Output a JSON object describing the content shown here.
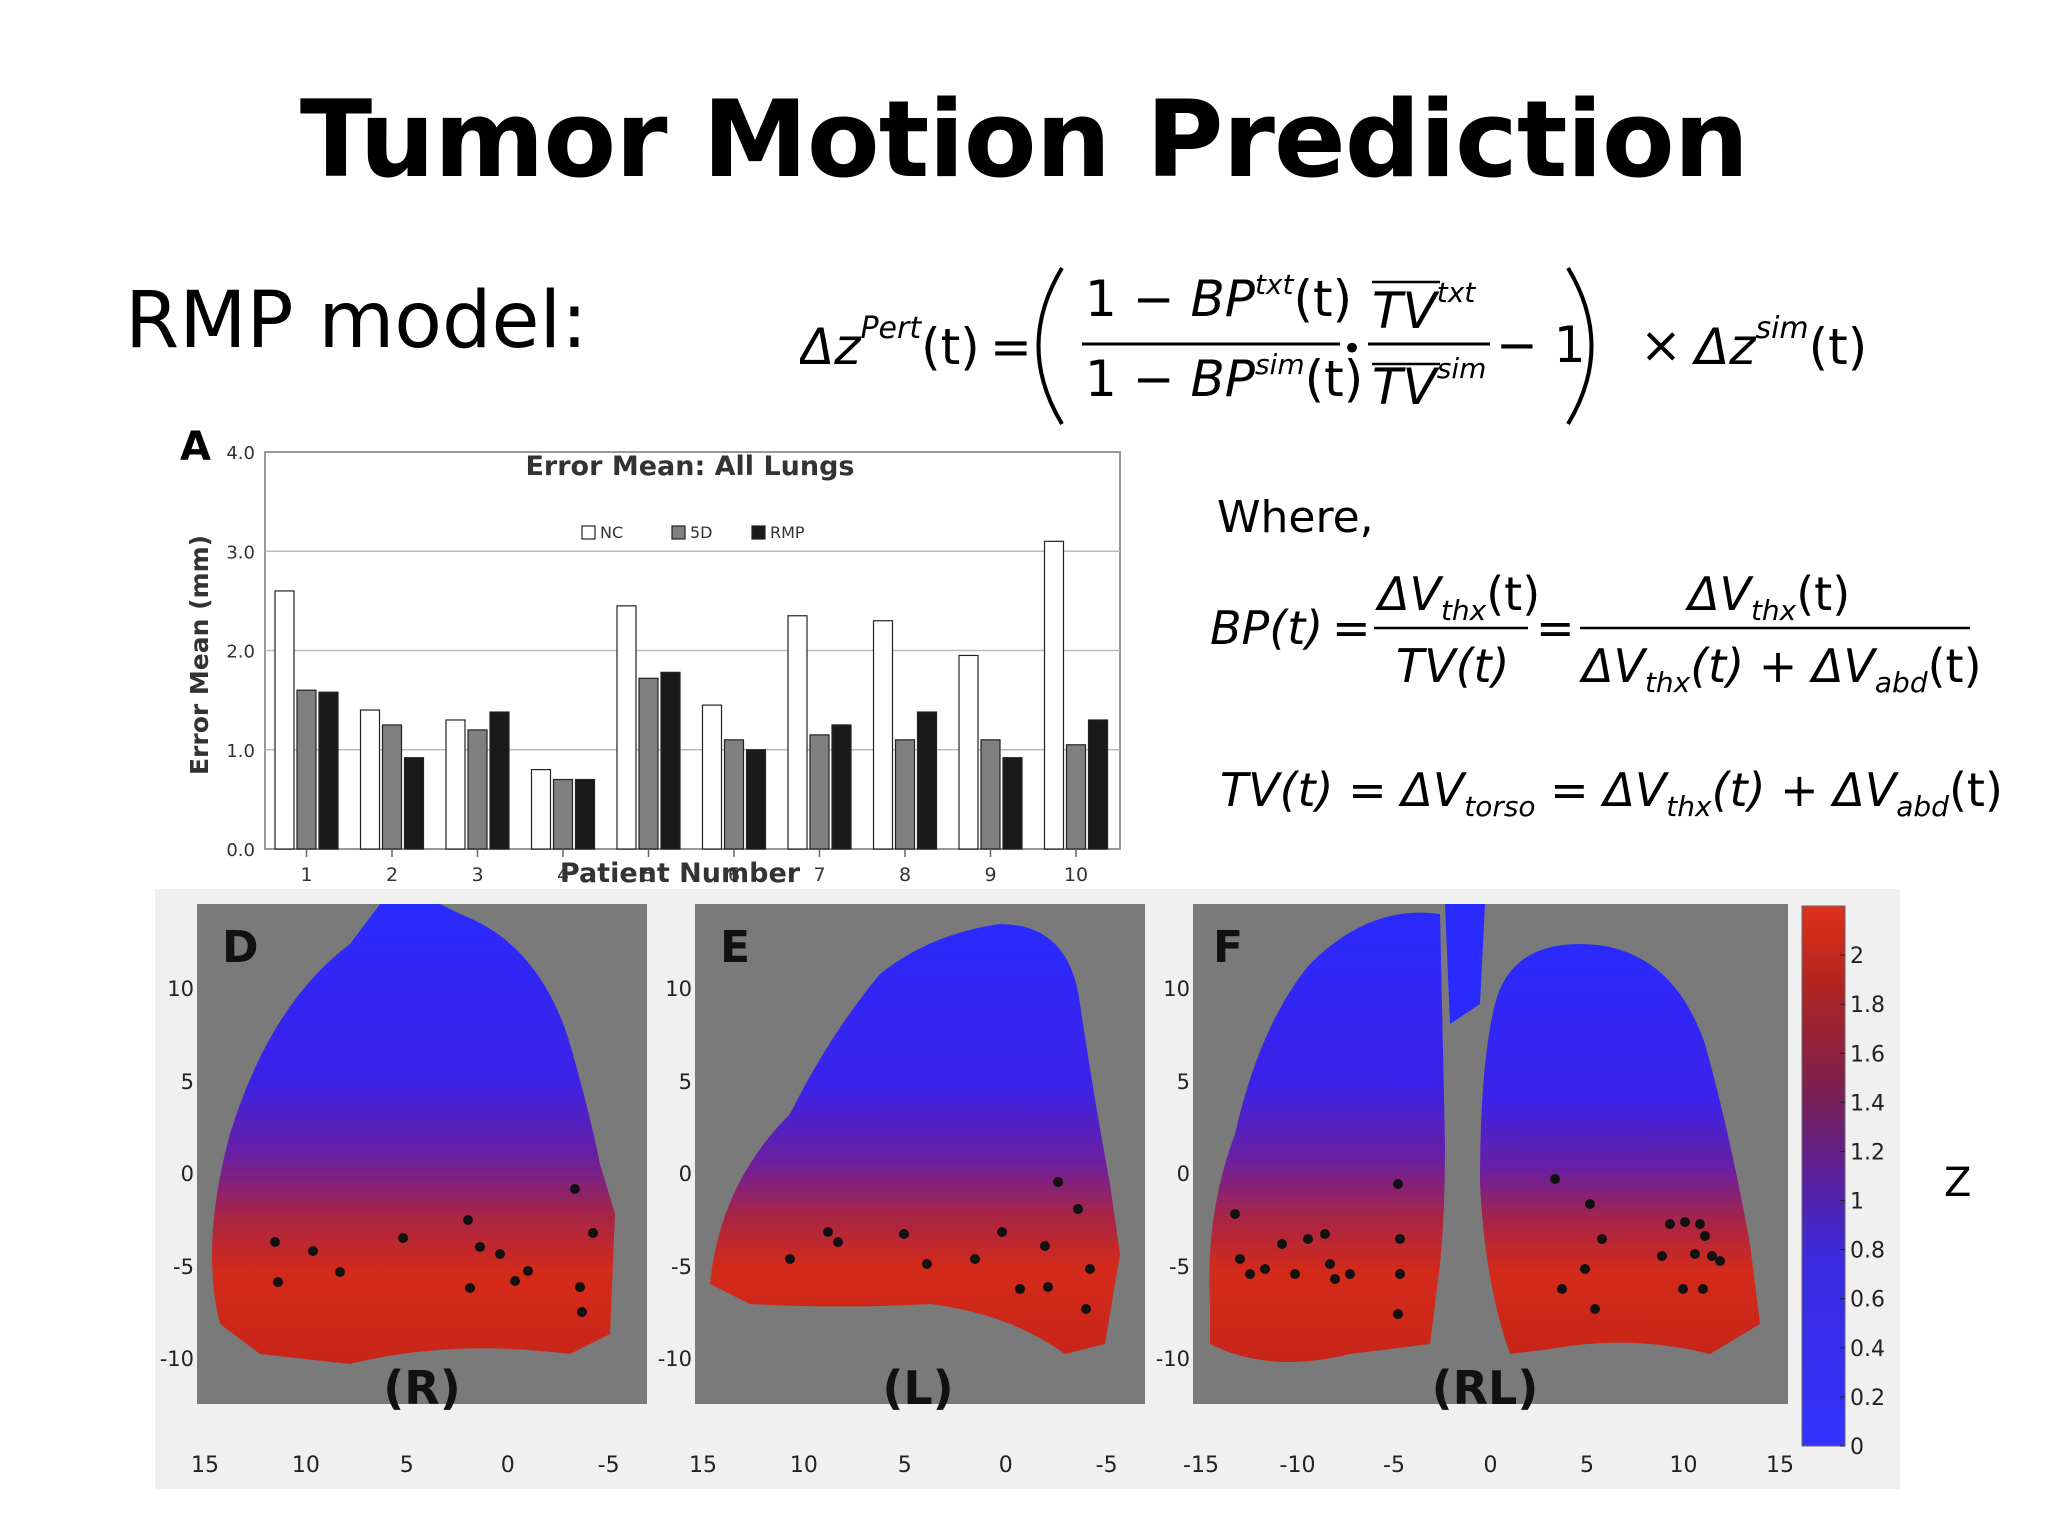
{
  "slide": {
    "title": "Tumor Motion Prediction",
    "model_label": "RMP model:",
    "where_label": "Where,",
    "z_label": "Z"
  },
  "equations": {
    "main": {
      "lhs_delta": "Δz",
      "lhs_sup": "Pert",
      "lhs_arg": "(t)",
      "eq": "=",
      "num": "1 − BP",
      "num_sup": "txt",
      "num_arg": "(t)",
      "den": "1 − BP",
      "den_sup": "sim",
      "den_arg": "(t)",
      "dot": "•",
      "tv_top": "TV",
      "tv_top_sup": "txt",
      "tv_bot": "TV",
      "tv_bot_sup": "sim",
      "minus_one": "− 1",
      "times": "×",
      "rhs_delta": "Δz",
      "rhs_sup": "sim",
      "rhs_arg": "(t)"
    },
    "bp": {
      "lhs": "BP(t)",
      "eq1": "=",
      "f1_num": "ΔV",
      "f1_num_sub": "thx",
      "f1_num_arg": "(t)",
      "f1_den": "TV(t)",
      "eq2": "=",
      "f2_num": "ΔV",
      "f2_num_sub": "thx",
      "f2_num_arg": "(t)",
      "f2_den_a": "ΔV",
      "f2_den_a_sub": "thx",
      "f2_den_a_arg": "(t) + ΔV",
      "f2_den_b_sub": "abd",
      "f2_den_b_arg": "(t)"
    },
    "tv": {
      "lhs": "TV(t) = ΔV",
      "lhs_sub": "torso",
      "mid": " = ΔV",
      "mid_sub": "thx",
      "rest": "(t) + ΔV",
      "rest_sub": "abd",
      "end": "(t)"
    }
  },
  "chart_data": {
    "type": "bar",
    "panel_letter": "A",
    "title": "Error Mean: All Lungs",
    "xlabel": "Patient Number",
    "ylabel": "Error Mean (mm)",
    "ylim": [
      0,
      4
    ],
    "yticks": [
      "0.0",
      "1.0",
      "2.0",
      "3.0",
      "4.0"
    ],
    "categories": [
      "1",
      "2",
      "3",
      "4",
      "5",
      "6",
      "7",
      "8",
      "9",
      "10"
    ],
    "legend_position": "top-center",
    "series": [
      {
        "name": "NC",
        "color": "#ffffff",
        "values": [
          2.6,
          1.4,
          1.3,
          0.8,
          2.45,
          1.45,
          2.35,
          2.3,
          1.95,
          3.1
        ]
      },
      {
        "name": "5D",
        "color": "#808080",
        "values": [
          1.6,
          1.25,
          1.2,
          0.7,
          1.72,
          1.1,
          1.15,
          1.1,
          1.1,
          1.05
        ]
      },
      {
        "name": "RMP",
        "color": "#1a1a1a",
        "values": [
          1.58,
          0.92,
          1.38,
          0.7,
          1.78,
          1.0,
          1.25,
          1.38,
          0.92,
          1.3
        ]
      }
    ],
    "grid": true
  },
  "maps": {
    "panels": [
      {
        "letter": "D",
        "label": "(R)",
        "xticks": [
          "15",
          "10",
          "5",
          "0",
          "-5"
        ],
        "yticks": [
          "10",
          "5",
          "0",
          "-5",
          "-10"
        ]
      },
      {
        "letter": "E",
        "label": "(L)",
        "xticks": [
          "15",
          "10",
          "5",
          "0",
          "-5"
        ],
        "yticks": [
          "10",
          "5",
          "0",
          "-5",
          "-10"
        ]
      },
      {
        "letter": "F",
        "label": "(RL)",
        "xticks": [
          "-15",
          "-10",
          "-5",
          "0",
          "5",
          "10",
          "15"
        ],
        "yticks": [
          "10",
          "5",
          "0",
          "-5",
          "-10"
        ]
      }
    ],
    "colorbar_ticks": [
      "2",
      "1.8",
      "1.6",
      "1.4",
      "1.2",
      "1",
      "0.8",
      "0.6",
      "0.4",
      "0.2",
      "0"
    ],
    "colorbar_range": [
      0,
      2.2
    ],
    "colors": {
      "low": "#2222ff",
      "mid": "#7a1f6a",
      "high": "#d42a1a",
      "background": "#7a7a7a"
    }
  }
}
